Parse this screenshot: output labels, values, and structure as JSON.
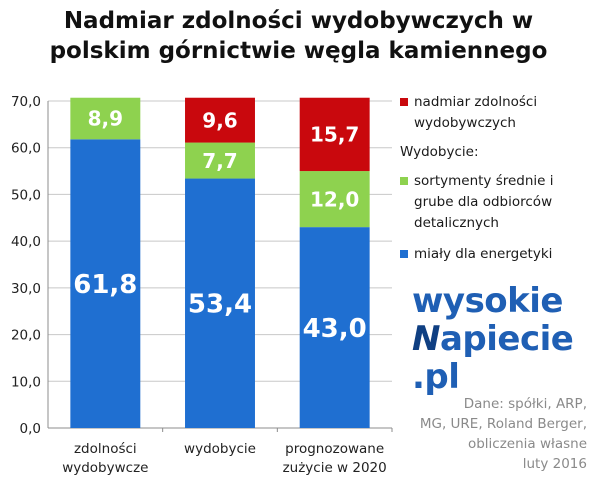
{
  "title_line1": "Nadmiar zdolności wydobywczych w",
  "title_line2": "polskim górnictwie węgla kamiennego",
  "legend": {
    "excess": "nadmiar zdolności wydobywczych",
    "heading": "Wydobycie:",
    "medium": "sortymenty średnie i grube dla odbiorców detalicznych",
    "fines": "miały dla energetyki"
  },
  "logo": {
    "line1": "wysokie",
    "line2_mark": "N",
    "line2_rest": "apiecie",
    "line3": ".pl"
  },
  "source": [
    "Dane: spółki, ARP,",
    "MG, URE, Roland Berger,",
    "obliczenia własne",
    "luty 2016"
  ],
  "colors": {
    "fines": "#1f6fd1",
    "medium": "#8ed24f",
    "excess": "#c9080d",
    "grid": "#c8c8c8",
    "axis": "#8c8c8c"
  },
  "chart_data": {
    "type": "bar",
    "stacked": true,
    "categories": [
      [
        "zdolności",
        "wydobywcze"
      ],
      [
        "wydobycie"
      ],
      [
        "prognozowane",
        "zużycie w 2020"
      ]
    ],
    "series": [
      {
        "name": "miały dla energetyki",
        "key": "fines",
        "values": [
          61.8,
          53.4,
          43.0
        ]
      },
      {
        "name": "sortymenty średnie i grube dla odbiorców detalicznych",
        "key": "medium",
        "values": [
          8.9,
          7.7,
          12.0
        ]
      },
      {
        "name": "nadmiar zdolności wydobywczych",
        "key": "excess",
        "values": [
          null,
          9.6,
          15.7
        ]
      }
    ],
    "ylim": [
      0,
      70
    ],
    "yticks": [
      0,
      10,
      20,
      30,
      40,
      50,
      60,
      70
    ],
    "ytick_labels": [
      "0,0",
      "10,0",
      "20,0",
      "30,0",
      "40,0",
      "50,0",
      "60,0",
      "70,0"
    ],
    "data_labels": [
      [
        "61,8",
        "53,4",
        "43,0"
      ],
      [
        "8,9",
        "7,7",
        "12,0"
      ],
      [
        null,
        "9,6",
        "15,7"
      ]
    ],
    "grid": true,
    "legend_position": "right"
  }
}
